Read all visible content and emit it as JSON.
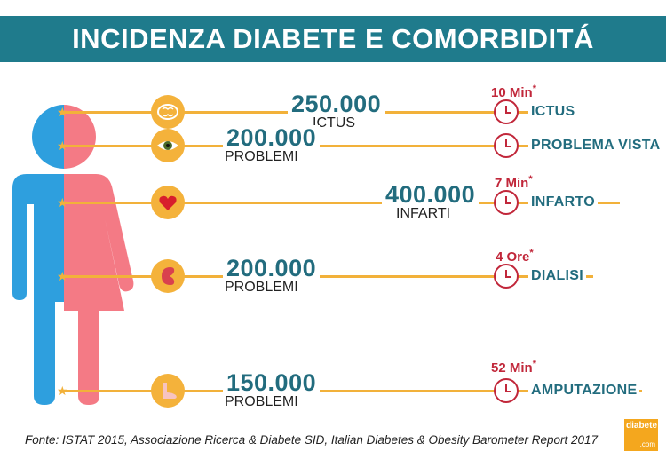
{
  "header": {
    "title": "INCIDENZA DIABETE E COMORBIDITÁ"
  },
  "rows": [
    {
      "icon": "brain-icon",
      "value": "250.000",
      "label": "ICTUS",
      "time": "10 Min",
      "condition": "ICTUS"
    },
    {
      "icon": "eye-icon",
      "value": "200.000",
      "label": "PROBLEMI",
      "time": "",
      "condition": "PROBLEMA VISTA"
    },
    {
      "icon": "heart-icon",
      "value": "400.000",
      "label": "INFARTI",
      "time": "7 Min",
      "condition": "INFARTO"
    },
    {
      "icon": "kidney-icon",
      "value": "200.000",
      "label": "PROBLEMI",
      "time": "4 Ore",
      "condition": "DIALISI"
    },
    {
      "icon": "foot-icon",
      "value": "150.000",
      "label": "PROBLEMI",
      "time": "52 Min",
      "condition": "AMPUTAZIONE"
    }
  ],
  "time_asterisk": "*",
  "footer": {
    "source": "Fonte: ISTAT 2015, Associazione Ricerca & Diabete SID, Italian Diabetes & Obesity Barometer Report 2017"
  },
  "logo": {
    "text": "diabete",
    "suffix": ".com"
  },
  "colors": {
    "banner": "#1f7b8c",
    "accent": "#f2b13a",
    "male": "#2e9fde",
    "female": "#f47a85",
    "time": "#c1273a",
    "stat": "#226c7e"
  }
}
